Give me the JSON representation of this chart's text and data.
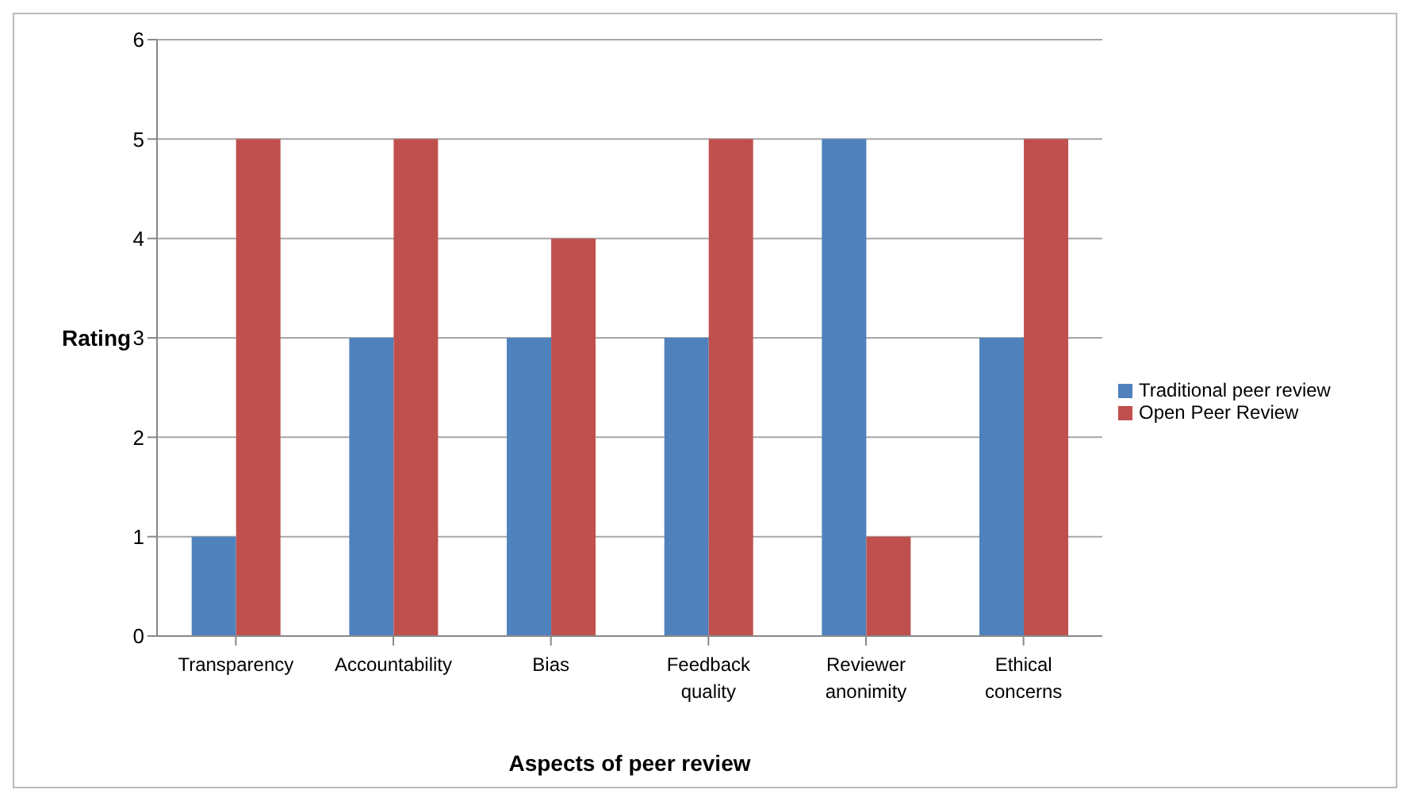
{
  "chart_data": {
    "type": "bar",
    "xlabel": "Aspects of peer review",
    "ylabel": "Rating",
    "categories": [
      "Transparency",
      "Accountability",
      "Bias",
      "Feedback quality",
      "Reviewer anonimity",
      "Ethical concerns"
    ],
    "series": [
      {
        "name": "Traditional peer review",
        "color": "#4f81bd",
        "values": [
          1,
          3,
          3,
          3,
          5,
          3
        ]
      },
      {
        "name": "Open Peer Review",
        "color": "#c0504d",
        "values": [
          5,
          5,
          4,
          5,
          1,
          5
        ]
      }
    ],
    "ylim": [
      0,
      6
    ],
    "yticks": [
      0,
      1,
      2,
      3,
      4,
      5,
      6
    ],
    "grid": "y",
    "legend": "right"
  }
}
